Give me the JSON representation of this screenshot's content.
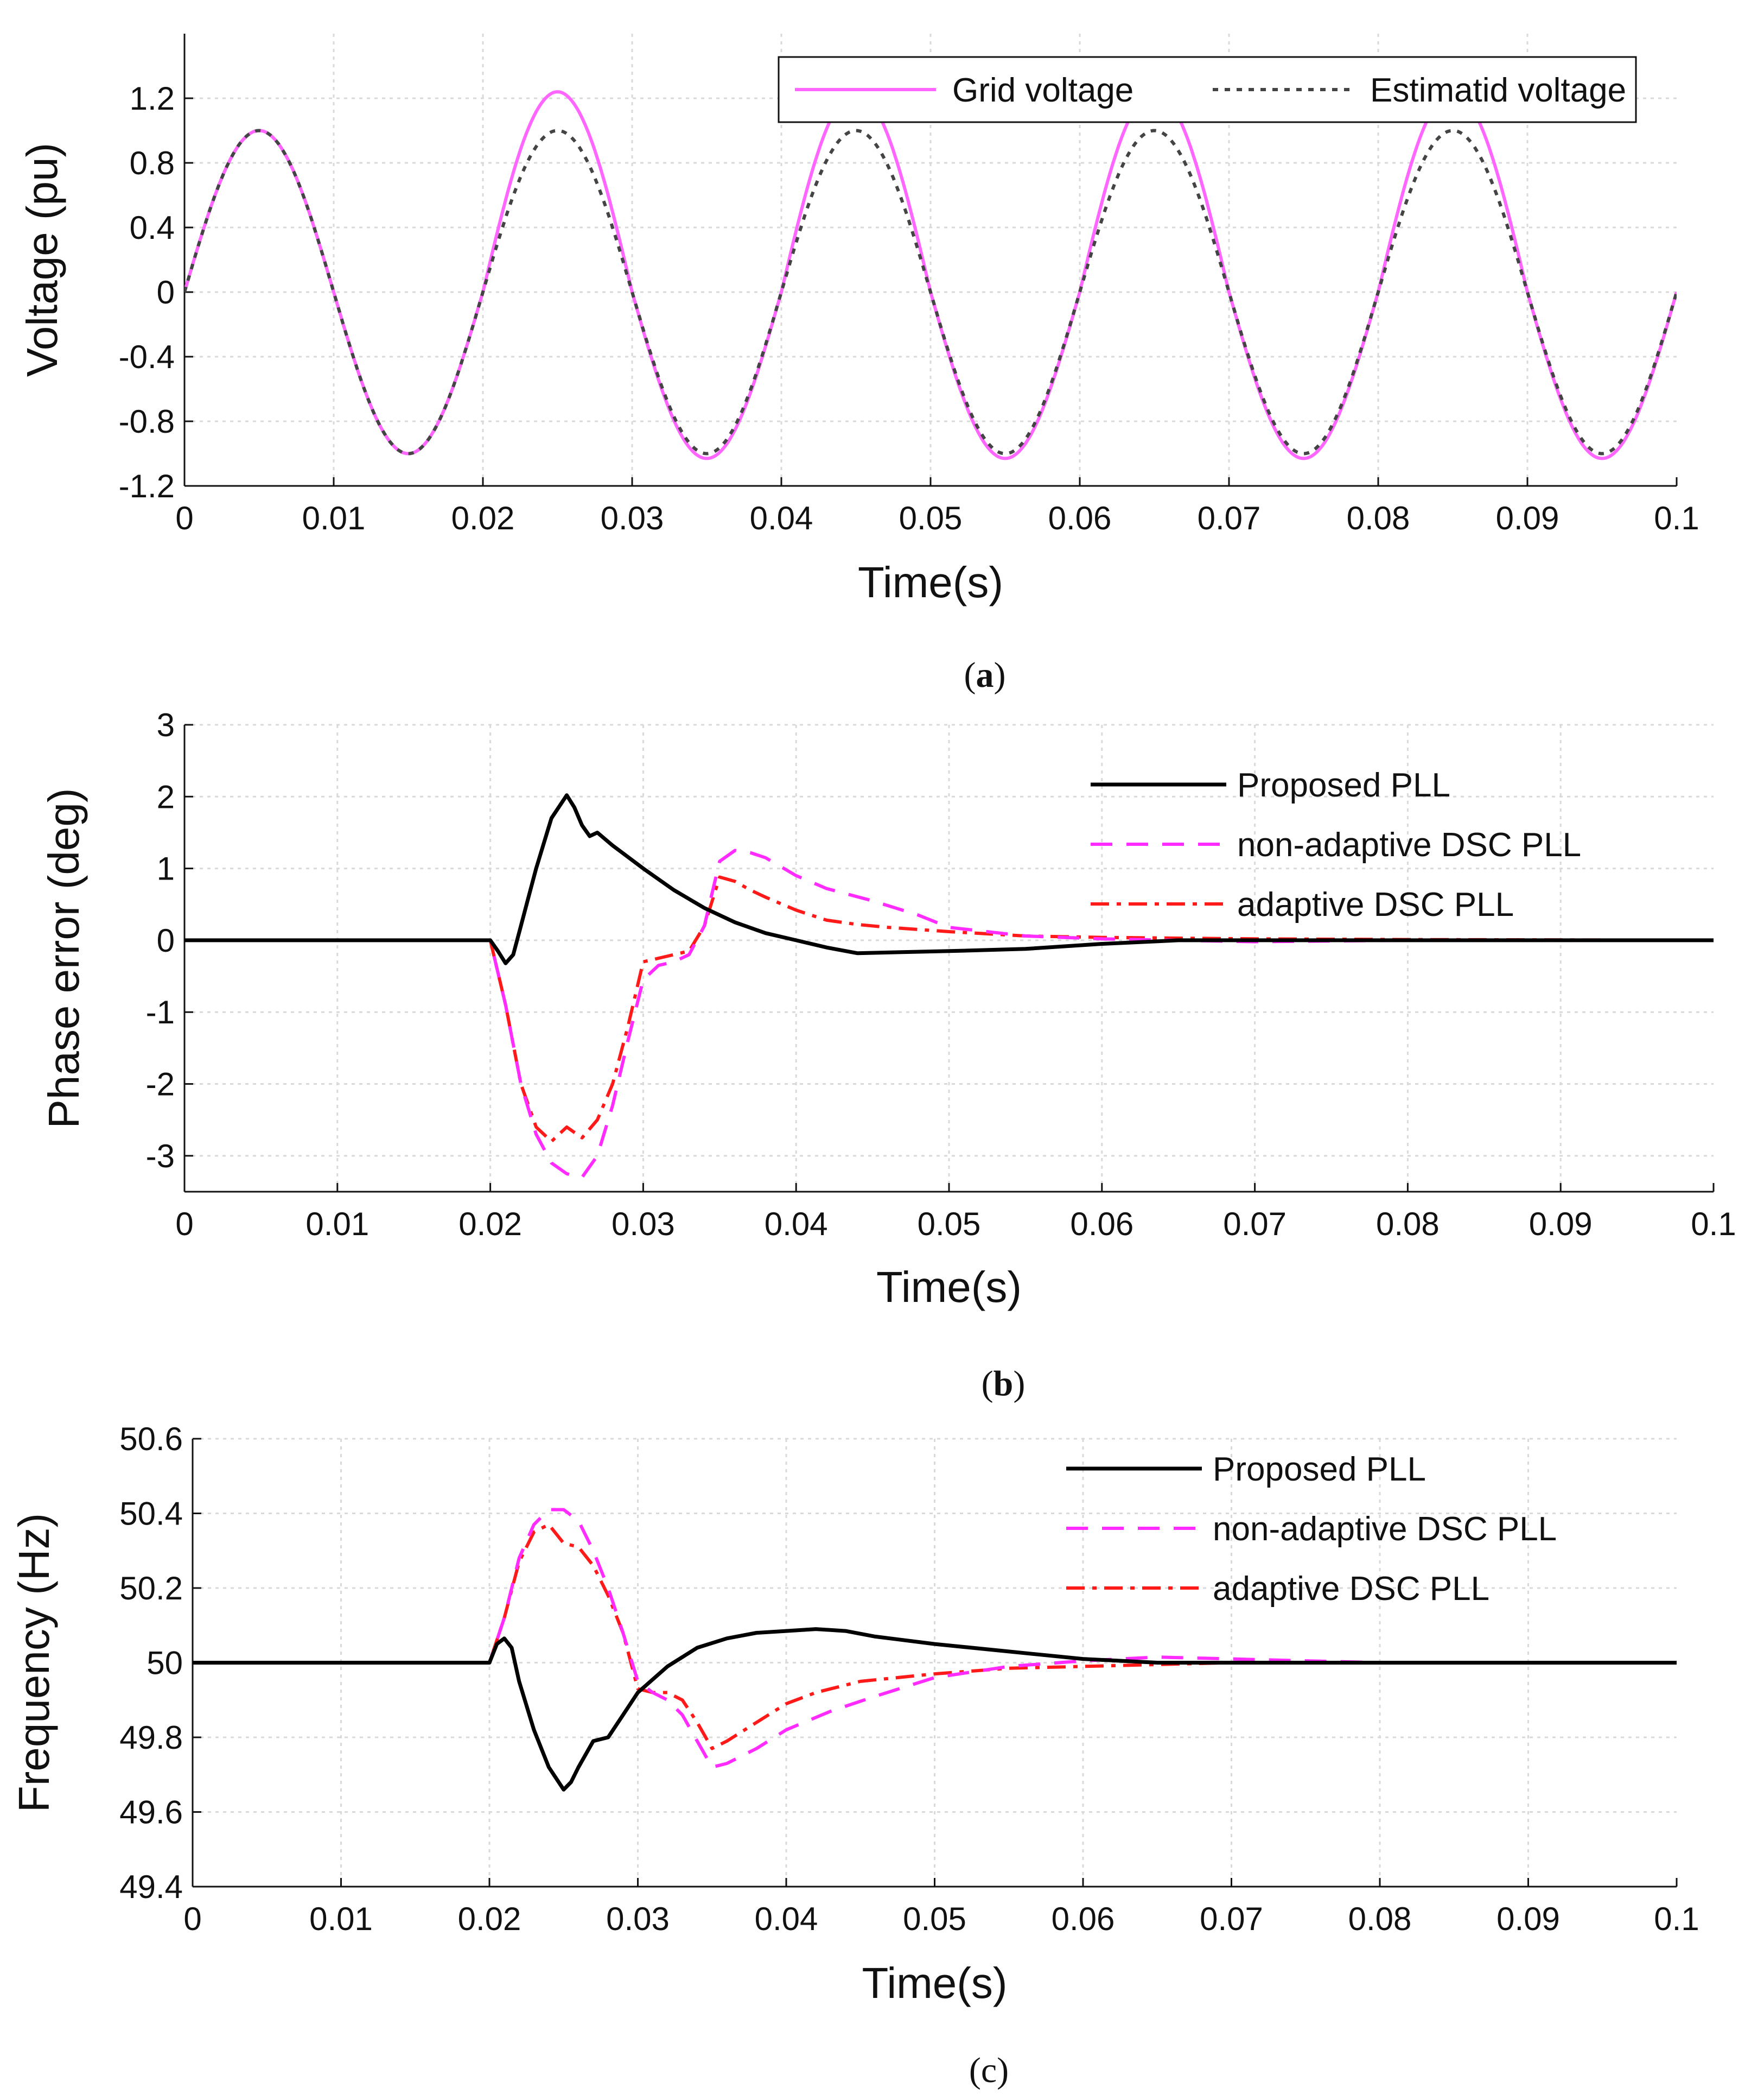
{
  "colors": {
    "magenta": "#ff2bff",
    "grid_voltage": "#ff66ff",
    "black": "#000000",
    "estimated_gray": "#444444",
    "red": "#ff1a1a"
  },
  "chart_data": [
    {
      "type": "line",
      "panel": "a",
      "caption_label": "a",
      "caption_open": "(",
      "caption_close": ")",
      "xlabel": "Time(s)",
      "ylabel": "Voltage (pu)",
      "xlim": [
        0,
        0.1
      ],
      "ylim": [
        -1.2,
        1.6
      ],
      "xticks": [
        0,
        0.01,
        0.02,
        0.03,
        0.04,
        0.05,
        0.06,
        0.07,
        0.08,
        0.09,
        0.1
      ],
      "xtick_labels": [
        "0",
        "0.01",
        "0.02",
        "0.03",
        "0.04",
        "0.05",
        "0.06",
        "0.07",
        "0.08",
        "0.09",
        "0.1"
      ],
      "yticks": [
        -1.2,
        -0.8,
        -0.4,
        0,
        0.4,
        0.8,
        1.2
      ],
      "ytick_labels": [
        "-1.2",
        "-0.8",
        "-0.4",
        "0",
        "0.4",
        "0.8",
        "1.2"
      ],
      "grid": true,
      "legend_position": "top-right",
      "legend_layout": "horizontal",
      "series": [
        {
          "name": "Grid voltage",
          "color": "#ff66ff",
          "dash": "solid",
          "kind": "sine",
          "frequency_hz": 50,
          "amplitude_segments": [
            {
              "from": 0,
              "to": 0.02,
              "amplitude": 1.0
            },
            {
              "from": 0.02,
              "to": 0.1,
              "amplitude": 1.24
            }
          ],
          "negative_peak": -1.03
        },
        {
          "name": "Estimatid voltage",
          "color": "#444444",
          "dash": "dotted",
          "kind": "sine",
          "frequency_hz": 50,
          "amplitude_segments": [
            {
              "from": 0,
              "to": 0.1,
              "amplitude": 1.0
            }
          ]
        }
      ]
    },
    {
      "type": "line",
      "panel": "b",
      "caption_label": "b",
      "caption_open": "(",
      "caption_close": ")",
      "xlabel": "Time(s)",
      "ylabel": "Phase error (deg)",
      "xlim": [
        0,
        0.1
      ],
      "ylim": [
        -3.5,
        3
      ],
      "xticks": [
        0,
        0.01,
        0.02,
        0.03,
        0.04,
        0.05,
        0.06,
        0.07,
        0.08,
        0.09,
        0.1
      ],
      "xtick_labels": [
        "0",
        "0.01",
        "0.02",
        "0.03",
        "0.04",
        "0.05",
        "0.06",
        "0.07",
        "0.08",
        "0.09",
        "0.1"
      ],
      "yticks": [
        -3,
        -2,
        -1,
        0,
        1,
        2,
        3
      ],
      "ytick_labels": [
        "-3",
        "-2",
        "-1",
        "0",
        "1",
        "2",
        "3"
      ],
      "grid": true,
      "legend_position": "top-right",
      "legend_layout": "vertical",
      "series": [
        {
          "name": "Proposed PLL",
          "color": "#000000",
          "dash": "solid",
          "x": [
            0,
            0.02,
            0.0205,
            0.021,
            0.0215,
            0.022,
            0.0225,
            0.023,
            0.024,
            0.025,
            0.0255,
            0.026,
            0.0265,
            0.027,
            0.028,
            0.03,
            0.032,
            0.034,
            0.036,
            0.038,
            0.04,
            0.042,
            0.044,
            0.046,
            0.05,
            0.055,
            0.06,
            0.065,
            0.07,
            0.08,
            0.1
          ],
          "y": [
            0,
            0,
            -0.15,
            -0.32,
            -0.2,
            0.2,
            0.6,
            1.0,
            1.7,
            2.02,
            1.85,
            1.6,
            1.45,
            1.5,
            1.32,
            1.0,
            0.7,
            0.45,
            0.25,
            0.1,
            0.0,
            -0.1,
            -0.18,
            -0.17,
            -0.15,
            -0.12,
            -0.05,
            0.0,
            0.0,
            0.0,
            0.0
          ]
        },
        {
          "name": "non-adaptive DSC PLL",
          "color": "#ff2bff",
          "dash": "dashed",
          "x": [
            0,
            0.02,
            0.021,
            0.022,
            0.023,
            0.024,
            0.025,
            0.026,
            0.027,
            0.028,
            0.029,
            0.03,
            0.031,
            0.032,
            0.033,
            0.034,
            0.035,
            0.036,
            0.037,
            0.038,
            0.04,
            0.042,
            0.045,
            0.048,
            0.05,
            0.055,
            0.06,
            0.065,
            0.07,
            0.08,
            0.1
          ],
          "y": [
            0,
            0,
            -0.9,
            -2.0,
            -2.7,
            -3.1,
            -3.25,
            -3.3,
            -3.0,
            -2.3,
            -1.4,
            -0.55,
            -0.35,
            -0.3,
            -0.2,
            0.2,
            1.1,
            1.25,
            1.22,
            1.15,
            0.9,
            0.72,
            0.55,
            0.35,
            0.18,
            0.06,
            0.02,
            0.0,
            -0.02,
            0.0,
            0.0
          ]
        },
        {
          "name": "adaptive DSC PLL",
          "color": "#ff1a1a",
          "dash": "dashdot",
          "x": [
            0,
            0.02,
            0.021,
            0.022,
            0.023,
            0.024,
            0.025,
            0.026,
            0.027,
            0.028,
            0.029,
            0.03,
            0.031,
            0.032,
            0.033,
            0.034,
            0.035,
            0.036,
            0.037,
            0.038,
            0.04,
            0.042,
            0.044,
            0.046,
            0.05,
            0.055,
            0.06,
            0.065,
            0.07,
            0.08,
            0.1
          ],
          "y": [
            0,
            0,
            -0.9,
            -2.0,
            -2.6,
            -2.8,
            -2.6,
            -2.75,
            -2.5,
            -2.0,
            -1.2,
            -0.3,
            -0.25,
            -0.2,
            -0.15,
            0.2,
            0.88,
            0.82,
            0.7,
            0.6,
            0.42,
            0.28,
            0.22,
            0.18,
            0.12,
            0.06,
            0.04,
            0.03,
            0.02,
            0.01,
            0.0
          ]
        }
      ]
    },
    {
      "type": "line",
      "panel": "c",
      "caption_label": "c",
      "caption_open": "(",
      "caption_close": ")",
      "xlabel": "Time(s)",
      "ylabel": "Frequency (Hz)",
      "xlim": [
        0,
        0.1
      ],
      "ylim": [
        49.4,
        50.6
      ],
      "xticks": [
        0,
        0.01,
        0.02,
        0.03,
        0.04,
        0.05,
        0.06,
        0.07,
        0.08,
        0.09,
        0.1
      ],
      "xtick_labels": [
        "0",
        "0.01",
        "0.02",
        "0.03",
        "0.04",
        "0.05",
        "0.06",
        "0.07",
        "0.08",
        "0.09",
        "0.1"
      ],
      "yticks": [
        49.4,
        49.6,
        49.8,
        50,
        50.2,
        50.4,
        50.6
      ],
      "ytick_labels": [
        "49.4",
        "49.6",
        "49.8",
        "50",
        "50.2",
        "50.4",
        "50.6"
      ],
      "grid": true,
      "legend_position": "top-right",
      "legend_layout": "vertical",
      "series": [
        {
          "name": "Proposed PLL",
          "color": "#000000",
          "dash": "solid",
          "x": [
            0,
            0.02,
            0.0205,
            0.021,
            0.0215,
            0.022,
            0.023,
            0.024,
            0.025,
            0.0255,
            0.026,
            0.027,
            0.028,
            0.029,
            0.03,
            0.032,
            0.034,
            0.036,
            0.038,
            0.04,
            0.042,
            0.044,
            0.046,
            0.05,
            0.055,
            0.06,
            0.065,
            0.07,
            0.08,
            0.1
          ],
          "y": [
            50,
            50,
            50.05,
            50.065,
            50.04,
            49.95,
            49.82,
            49.72,
            49.66,
            49.68,
            49.72,
            49.79,
            49.8,
            49.86,
            49.92,
            49.99,
            50.04,
            50.065,
            50.08,
            50.085,
            50.09,
            50.085,
            50.07,
            50.05,
            50.03,
            50.01,
            50.0,
            50.0,
            50.0,
            50.0
          ]
        },
        {
          "name": "non-adaptive DSC PLL",
          "color": "#ff2bff",
          "dash": "dashed",
          "x": [
            0,
            0.02,
            0.021,
            0.022,
            0.023,
            0.024,
            0.025,
            0.026,
            0.027,
            0.028,
            0.029,
            0.03,
            0.031,
            0.032,
            0.033,
            0.034,
            0.035,
            0.036,
            0.038,
            0.04,
            0.043,
            0.046,
            0.05,
            0.055,
            0.06,
            0.065,
            0.07,
            0.08,
            0.1
          ],
          "y": [
            50,
            50,
            50.12,
            50.28,
            50.37,
            50.41,
            50.41,
            50.38,
            50.3,
            50.2,
            50.08,
            49.95,
            49.92,
            49.9,
            49.86,
            49.79,
            49.72,
            49.73,
            49.77,
            49.82,
            49.87,
            49.91,
            49.96,
            49.99,
            50.005,
            50.015,
            50.01,
            50.0,
            50.0
          ]
        },
        {
          "name": "adaptive DSC PLL",
          "color": "#ff1a1a",
          "dash": "dashdot",
          "x": [
            0,
            0.02,
            0.021,
            0.022,
            0.023,
            0.024,
            0.025,
            0.026,
            0.027,
            0.028,
            0.029,
            0.03,
            0.031,
            0.032,
            0.033,
            0.034,
            0.035,
            0.036,
            0.038,
            0.04,
            0.042,
            0.045,
            0.05,
            0.055,
            0.06,
            0.065,
            0.07,
            0.08,
            0.1
          ],
          "y": [
            50,
            50,
            50.12,
            50.27,
            50.35,
            50.37,
            50.32,
            50.31,
            50.26,
            50.18,
            50.08,
            49.93,
            49.92,
            49.92,
            49.9,
            49.84,
            49.77,
            49.79,
            49.84,
            49.89,
            49.92,
            49.95,
            49.97,
            49.985,
            49.99,
            49.995,
            50.0,
            50.0,
            50.0
          ]
        }
      ]
    }
  ]
}
